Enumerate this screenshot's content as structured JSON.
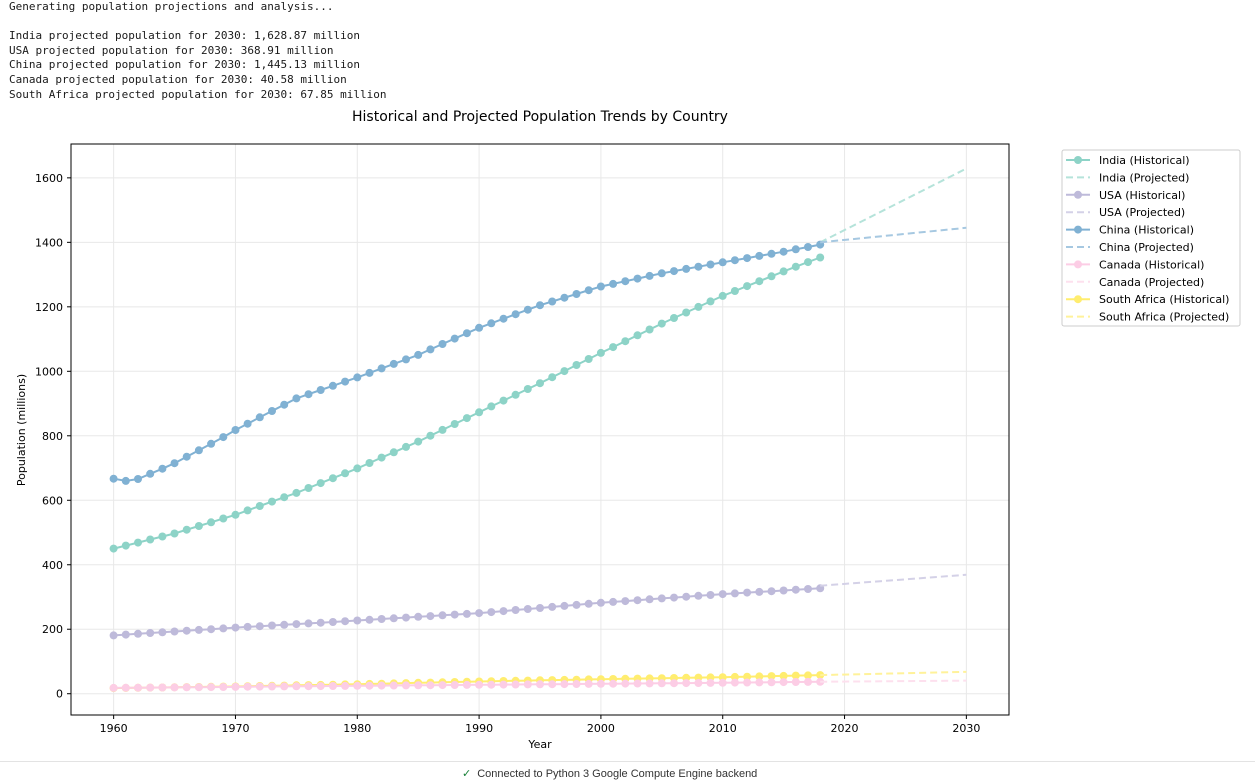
{
  "console": {
    "lines": [
      "Generating population projections and analysis...",
      "",
      "India projected population for 2030: 1,628.87 million",
      "USA projected population for 2030: 368.91 million",
      "China projected population for 2030: 1,445.13 million",
      "Canada projected population for 2030: 40.58 million",
      "South Africa projected population for 2030: 67.85 million"
    ]
  },
  "status_bar": {
    "check_icon": "check-icon",
    "text": "Connected to Python 3 Google Compute Engine backend"
  },
  "chart_data": {
    "type": "line",
    "title": "Historical and Projected Population Trends by Country",
    "xlabel": "Year",
    "ylabel": "Population (millions)",
    "xlim": [
      1956.5,
      2033.5
    ],
    "ylim": [
      -66,
      1705
    ],
    "xticks": [
      1960,
      1970,
      1980,
      1990,
      2000,
      2010,
      2020,
      2030
    ],
    "yticks": [
      0,
      200,
      400,
      600,
      800,
      1000,
      1200,
      1400,
      1600
    ],
    "grid": true,
    "legend_placement": "outside-right",
    "historical_years": [
      1960,
      2018
    ],
    "projected_years": [
      2018,
      2030
    ],
    "series": [
      {
        "name": "India",
        "legend_historical": "India (Historical)",
        "legend_projected": "India (Projected)",
        "color": "#8dd3c7",
        "proj_color": "#b5e3da",
        "historical": [
          [
            1960,
            450
          ],
          [
            1965,
            497
          ],
          [
            1970,
            555
          ],
          [
            1975,
            623
          ],
          [
            1980,
            699
          ],
          [
            1985,
            782
          ],
          [
            1990,
            873
          ],
          [
            1995,
            963
          ],
          [
            2000,
            1057
          ],
          [
            2005,
            1148
          ],
          [
            2010,
            1234
          ],
          [
            2015,
            1310
          ],
          [
            2018,
            1353
          ]
        ],
        "projected": [
          [
            2018,
            1400
          ],
          [
            2030,
            1628.87
          ]
        ]
      },
      {
        "name": "USA",
        "legend_historical": "USA (Historical)",
        "legend_projected": "USA (Projected)",
        "color": "#bebada",
        "proj_color": "#d4d1e7",
        "historical": [
          [
            1960,
            181
          ],
          [
            1970,
            205
          ],
          [
            1980,
            227
          ],
          [
            1990,
            250
          ],
          [
            2000,
            282
          ],
          [
            2010,
            309
          ],
          [
            2018,
            327
          ]
        ],
        "projected": [
          [
            2018,
            335
          ],
          [
            2030,
            368.91
          ]
        ]
      },
      {
        "name": "China",
        "legend_historical": "China (Historical)",
        "legend_projected": "China (Projected)",
        "color": "#80b1d3",
        "proj_color": "#a6c8e1",
        "historical": [
          [
            1960,
            667
          ],
          [
            1961,
            660
          ],
          [
            1962,
            666
          ],
          [
            1963,
            682
          ],
          [
            1964,
            698
          ],
          [
            1965,
            715
          ],
          [
            1966,
            735
          ],
          [
            1967,
            755
          ],
          [
            1968,
            775
          ],
          [
            1969,
            796
          ],
          [
            1970,
            818
          ],
          [
            1975,
            916
          ],
          [
            1980,
            981
          ],
          [
            1985,
            1051
          ],
          [
            1990,
            1135
          ],
          [
            1995,
            1205
          ],
          [
            2000,
            1263
          ],
          [
            2005,
            1304
          ],
          [
            2010,
            1338
          ],
          [
            2015,
            1371
          ],
          [
            2018,
            1393
          ]
        ],
        "projected": [
          [
            2018,
            1400
          ],
          [
            2030,
            1445.13
          ]
        ]
      },
      {
        "name": "Canada",
        "legend_historical": "Canada (Historical)",
        "legend_projected": "Canada (Projected)",
        "color": "#fccde5",
        "proj_color": "#fde0ee",
        "historical": [
          [
            1960,
            17.9
          ],
          [
            1970,
            21.3
          ],
          [
            1980,
            24.5
          ],
          [
            1990,
            27.8
          ],
          [
            2000,
            30.8
          ],
          [
            2010,
            34.0
          ],
          [
            2018,
            37.1
          ]
        ],
        "projected": [
          [
            2018,
            37.1
          ],
          [
            2030,
            40.58
          ]
        ]
      },
      {
        "name": "South Africa",
        "legend_historical": "South Africa (Historical)",
        "legend_projected": "South Africa (Projected)",
        "color": "#ffed6f",
        "proj_color": "#fff29a",
        "historical": [
          [
            1960,
            17.4
          ],
          [
            1970,
            22.5
          ],
          [
            1980,
            29.5
          ],
          [
            1990,
            38.0
          ],
          [
            2000,
            45.0
          ],
          [
            2010,
            51.2
          ],
          [
            2018,
            57.8
          ]
        ],
        "projected": [
          [
            2018,
            57.8
          ],
          [
            2030,
            67.85
          ]
        ]
      }
    ]
  }
}
